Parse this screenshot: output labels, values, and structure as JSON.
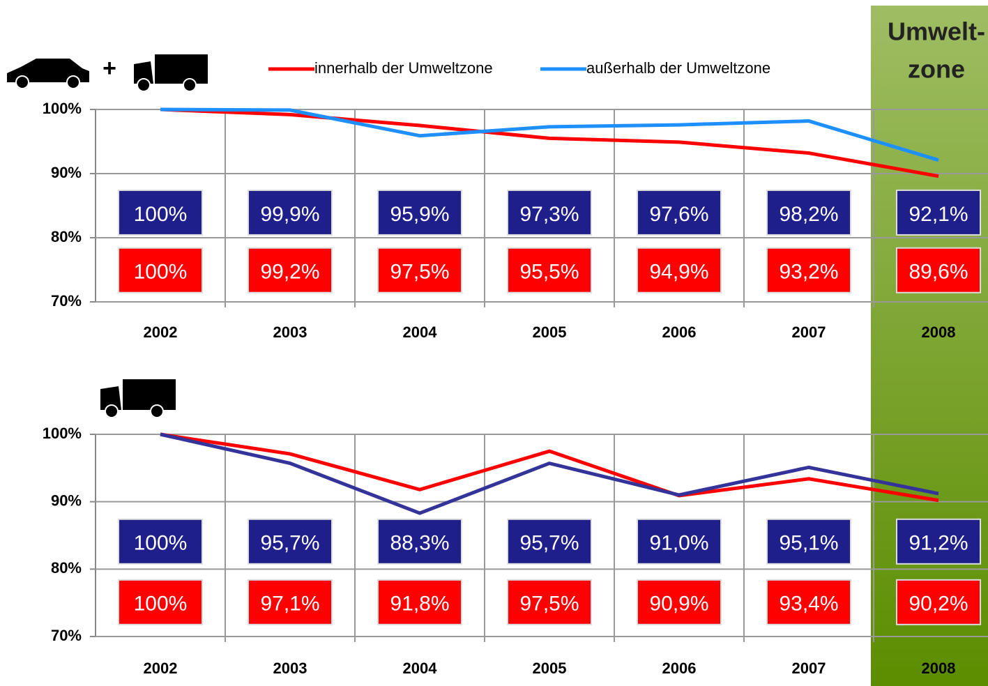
{
  "plus": "+",
  "zone_label": [
    "Umwelt-",
    "zone"
  ],
  "chart_data": [
    {
      "type": "line",
      "legend": "top",
      "grid": true,
      "categories": [
        "2002",
        "2003",
        "2004",
        "2005",
        "2006",
        "2007",
        "2008"
      ],
      "ylim": [
        70,
        100
      ],
      "yticks": [
        {
          "value": 70,
          "label": "70%"
        },
        {
          "value": 80,
          "label": "80%"
        },
        {
          "value": 90,
          "label": "90%"
        },
        {
          "value": 100,
          "label": "100%"
        }
      ],
      "series": [
        {
          "name": "innerhalb der Umweltzone",
          "color": "#ff0000",
          "values": [
            100,
            99.2,
            97.5,
            95.5,
            94.9,
            93.2,
            89.6
          ],
          "value_labels": [
            "100%",
            "99,2%",
            "97,5%",
            "95,5%",
            "94,9%",
            "93,2%",
            "89,6%"
          ]
        },
        {
          "name": "außerhalb der Umweltzone",
          "color": "#1e8fff",
          "values": [
            100,
            99.9,
            95.9,
            97.3,
            97.6,
            98.2,
            92.1
          ],
          "value_labels": [
            "100%",
            "99,9%",
            "95,9%",
            "97,3%",
            "97,6%",
            "98,2%",
            "92,1%"
          ]
        }
      ]
    },
    {
      "type": "line",
      "grid": true,
      "categories": [
        "2002",
        "2003",
        "2004",
        "2005",
        "2006",
        "2007",
        "2008"
      ],
      "ylim": [
        70,
        100
      ],
      "yticks": [
        {
          "value": 70,
          "label": "70%"
        },
        {
          "value": 80,
          "label": "80%"
        },
        {
          "value": 90,
          "label": "90%"
        },
        {
          "value": 100,
          "label": "100%"
        }
      ],
      "series": [
        {
          "color": "#ff0000",
          "values": [
            100,
            97.1,
            91.8,
            97.5,
            90.9,
            93.4,
            90.2
          ],
          "value_labels": [
            "100%",
            "97,1%",
            "91,8%",
            "97,5%",
            "90,9%",
            "93,4%",
            "90,2%"
          ]
        },
        {
          "color": "#333399",
          "values": [
            100,
            95.7,
            88.3,
            95.7,
            91.0,
            95.1,
            91.2
          ],
          "value_labels": [
            "100%",
            "95,7%",
            "88,3%",
            "95,7%",
            "91,0%",
            "95,1%",
            "91,2%"
          ]
        }
      ]
    }
  ]
}
